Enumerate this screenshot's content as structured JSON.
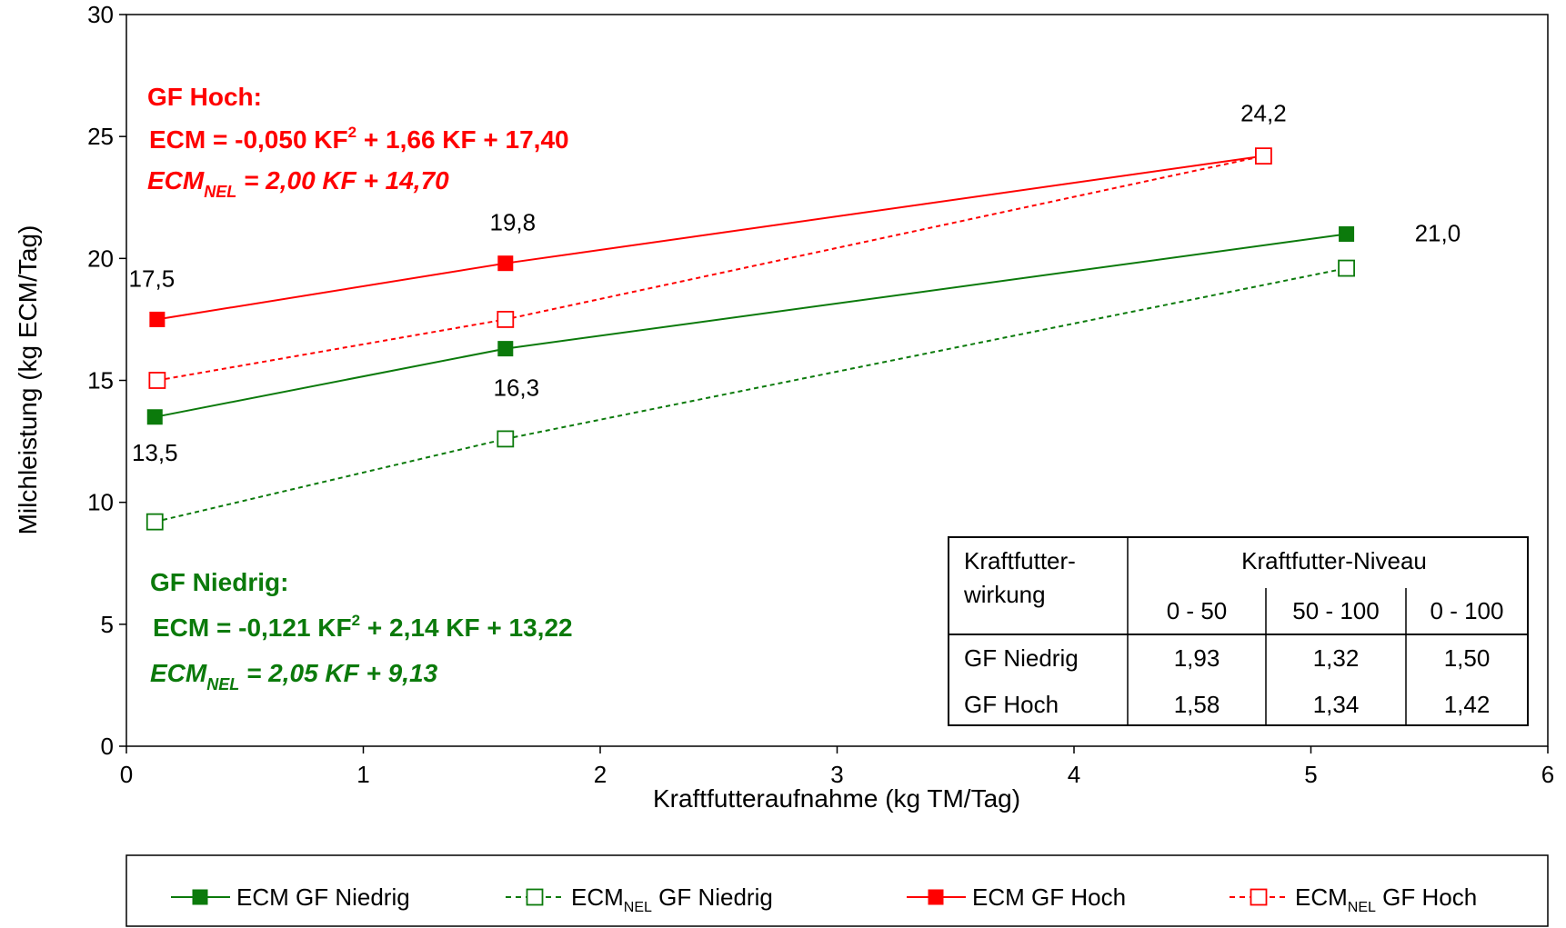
{
  "chart_data": {
    "type": "line",
    "xlabel": "Kraftfutteraufnahme (kg TM/Tag)",
    "ylabel": "Milchleistung (kg ECM/Tag)",
    "xlim": [
      0,
      6
    ],
    "ylim": [
      0,
      30
    ],
    "xticks": [
      "0",
      "1",
      "2",
      "3",
      "4",
      "5",
      "6"
    ],
    "yticks": [
      "0",
      "5",
      "10",
      "15",
      "20",
      "25",
      "30"
    ],
    "grid": false,
    "legend_position": "bottom",
    "series": [
      {
        "name": "ECM GF Niedrig",
        "legend_main": "ECM GF Niedrig",
        "legend_sub": "",
        "legend_suffix": "",
        "color": "#0b7a0b",
        "style": "solid",
        "marker": "filled-square",
        "x": [
          0.12,
          1.6,
          5.15
        ],
        "y": [
          13.5,
          16.3,
          21.0
        ],
        "labels": [
          "13,5",
          "16,3",
          "21,0"
        ]
      },
      {
        "name": "ECM_NEL GF Niedrig",
        "legend_main": "ECM",
        "legend_sub": "NEL",
        "legend_suffix": " GF Niedrig",
        "color": "#0b7a0b",
        "style": "dashed",
        "marker": "open-square",
        "x": [
          0.12,
          1.6,
          5.15
        ],
        "y": [
          9.2,
          12.6,
          19.6
        ]
      },
      {
        "name": "ECM GF Hoch",
        "legend_main": "ECM GF Hoch",
        "legend_sub": "",
        "legend_suffix": "",
        "color": "#ff0000",
        "style": "solid",
        "marker": "filled-square",
        "x": [
          0.13,
          1.6,
          4.8
        ],
        "y": [
          17.5,
          19.8,
          24.2
        ],
        "labels": [
          "17,5",
          "19,8",
          "24,2"
        ]
      },
      {
        "name": "ECM_NEL GF Hoch",
        "legend_main": "ECM",
        "legend_sub": "NEL",
        "legend_suffix": " GF Hoch",
        "color": "#ff0000",
        "style": "dashed",
        "marker": "open-square",
        "x": [
          0.13,
          1.6,
          4.8
        ],
        "y": [
          15.0,
          17.5,
          24.2
        ]
      }
    ],
    "annotations": {
      "hoch_title": "GF Hoch:",
      "hoch_eq1": "ECM = -0,050 KF",
      "hoch_eq1_sup": "2",
      "hoch_eq1_rest": " + 1,66 KF + 17,40",
      "hoch_eq2_main": "ECM",
      "hoch_eq2_sub": "NEL",
      "hoch_eq2_rest": " = 2,00 KF + 14,70",
      "niedrig_title": "GF Niedrig:",
      "niedrig_eq1": "ECM = -0,121 KF",
      "niedrig_eq1_sup": "2",
      "niedrig_eq1_rest": " + 2,14 KF + 13,22",
      "niedrig_eq2_main": "ECM",
      "niedrig_eq2_sub": "NEL",
      "niedrig_eq2_rest": " = 2,05 KF + 9,13"
    },
    "table": {
      "header_left_1": "Kraftfutter-",
      "header_left_2": "wirkung",
      "header_group": "Kraftfutter-Niveau",
      "columns": [
        "0 - 50",
        "50 - 100",
        "0 - 100"
      ],
      "rows": [
        {
          "label": "GF Niedrig",
          "values": [
            "1,93",
            "1,32",
            "1,50"
          ]
        },
        {
          "label": "GF Hoch",
          "values": [
            "1,58",
            "1,34",
            "1,42"
          ]
        }
      ]
    }
  }
}
